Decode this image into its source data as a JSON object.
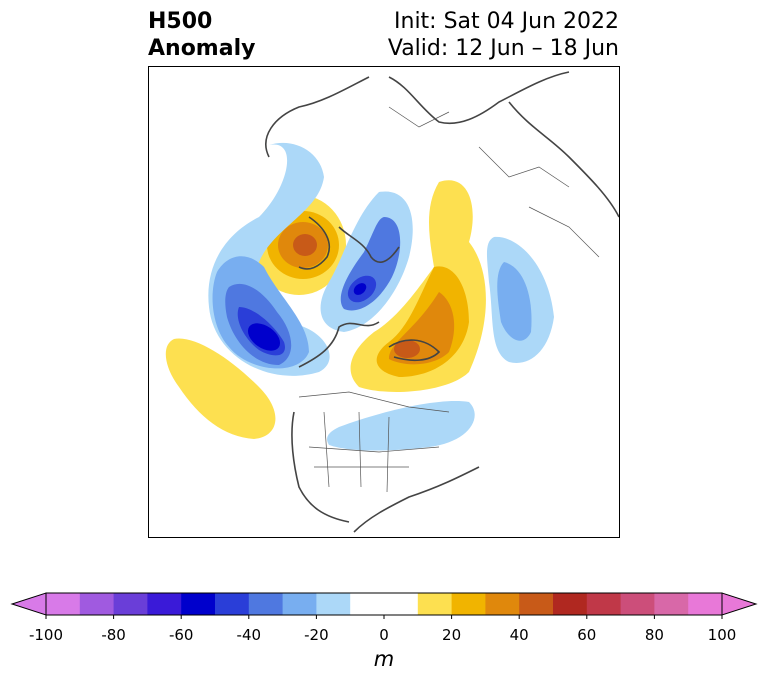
{
  "header": {
    "left_line1": "H500",
    "left_line2": "Anomaly",
    "right_line1": "Init: Sat 04 Jun 2022",
    "right_line2": "Valid: 12 Jun – 18 Jun"
  },
  "map": {
    "variable": "500 hPa geopotential height anomaly",
    "region": "North America / Arctic (polar stereographic)",
    "features": [
      {
        "name": "ridge-alaska",
        "sign": "positive",
        "peak_m": 50
      },
      {
        "name": "trough-bering-north-pacific",
        "sign": "negative",
        "peak_m": -60
      },
      {
        "name": "trough-east-siberia-arctic",
        "sign": "negative",
        "peak_m": -60
      },
      {
        "name": "ridge-greenland-canadian-archipelago",
        "sign": "positive",
        "peak_m": 50
      },
      {
        "name": "ridge-scandinavia",
        "sign": "positive",
        "peak_m": 20
      },
      {
        "name": "trough-northwest-europe",
        "sign": "negative",
        "peak_m": -30
      },
      {
        "name": "ridge-subtropical-north-pacific",
        "sign": "positive",
        "peak_m": 20
      },
      {
        "name": "trough-north-atlantic-canada",
        "sign": "negative",
        "peak_m": -20
      }
    ]
  },
  "colorbar": {
    "unit": "m",
    "min": -100,
    "max": 100,
    "step": 10,
    "extend": "both",
    "tick_labels": [
      "-100",
      "-80",
      "-60",
      "-40",
      "-20",
      "0",
      "20",
      "40",
      "60",
      "80",
      "100"
    ],
    "colors": [
      "#d87ae8",
      "#a05ae0",
      "#6a3ed8",
      "#3a1ad8",
      "#0000cc",
      "#2a3ed8",
      "#4f78e0",
      "#78aef0",
      "#acd8f8",
      "#ffffff",
      "#ffffff",
      "#fde050",
      "#f1b400",
      "#e0880c",
      "#c85a18",
      "#b02820",
      "#c03848",
      "#cc4e7a",
      "#d868a8",
      "#e878d8"
    ],
    "left_extend_color": "#d87ae8",
    "right_extend_color": "#e878d8"
  }
}
